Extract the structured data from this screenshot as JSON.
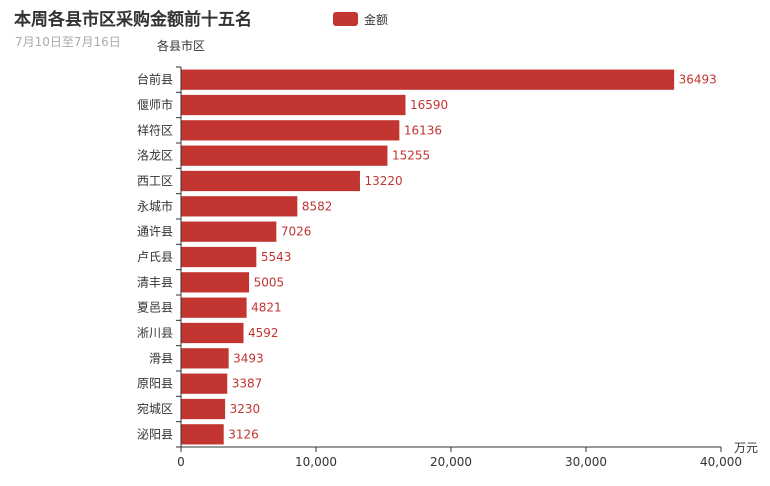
{
  "chart_data": {
    "type": "bar",
    "orientation": "horizontal",
    "title": "本周各县市区采购金额前十五名",
    "subtitle": "7月10日至7月16日",
    "ylabel": "各县市区",
    "xlabel": "万元",
    "legend": {
      "entries": [
        "金额"
      ],
      "placement": "top-center"
    },
    "categories": [
      "台前县",
      "偃师市",
      "祥符区",
      "洛龙区",
      "西工区",
      "永城市",
      "通许县",
      "卢氏县",
      "清丰县",
      "夏邑县",
      "淅川县",
      "滑县",
      "原阳县",
      "宛城区",
      "泌阳县"
    ],
    "series": [
      {
        "name": "金额",
        "values": [
          36493,
          16590,
          16136,
          15255,
          13220,
          8582,
          7026,
          5543,
          5005,
          4821,
          4592,
          3493,
          3387,
          3230,
          3126
        ]
      }
    ],
    "xlim": [
      0,
      40000
    ],
    "xticks": [
      "0",
      "10,000",
      "20,000",
      "30,000",
      "40,000"
    ],
    "grid": false,
    "color": "#c23531"
  }
}
